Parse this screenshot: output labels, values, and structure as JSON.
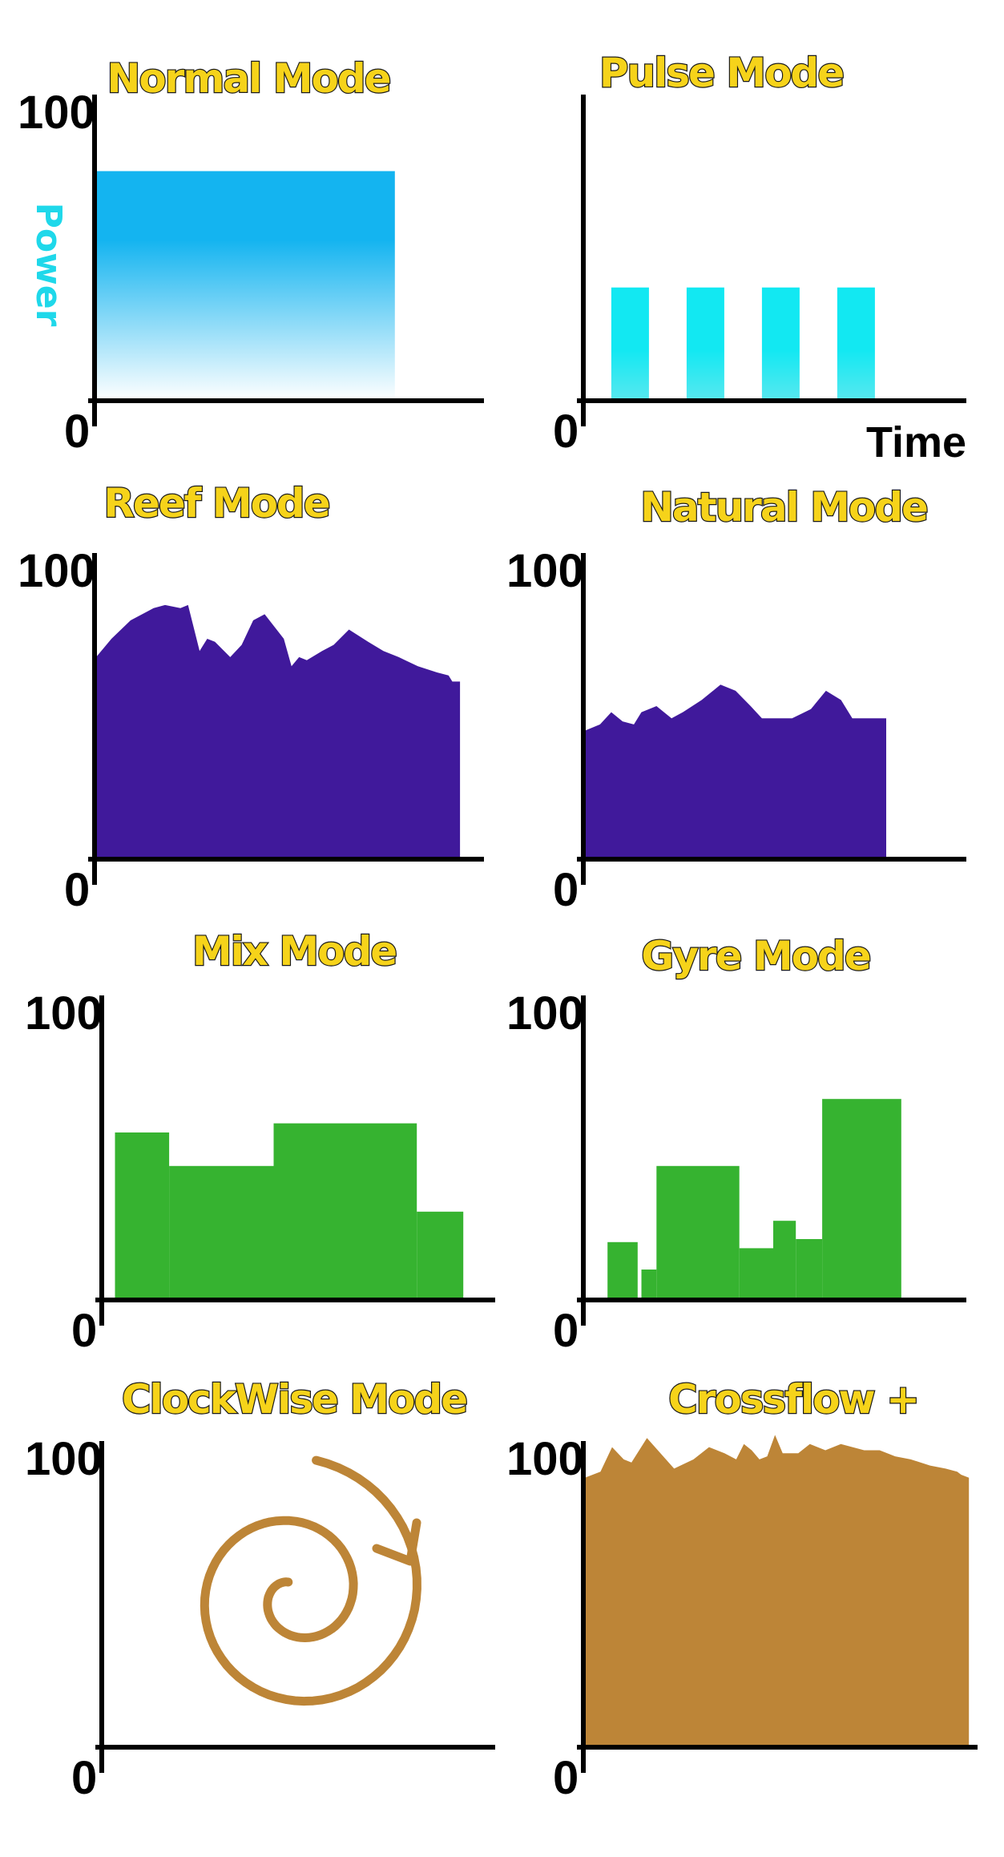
{
  "chart_data": [
    {
      "type": "area",
      "title": "Normal Mode",
      "ylabel": "Power",
      "xlabel": "",
      "ylim": [
        0,
        100
      ],
      "yticks": [
        "0",
        "100"
      ],
      "color": "#14b4f0",
      "gradient": true,
      "x": [
        0,
        0.78
      ],
      "values": [
        75,
        75
      ]
    },
    {
      "type": "bar",
      "title": "Pulse Mode",
      "xlabel": "Time",
      "ylim": [
        0,
        100
      ],
      "yticks": [
        "0"
      ],
      "color": "#12e8f2",
      "gradient": true,
      "bars": [
        {
          "x0": 0.07,
          "x1": 0.17,
          "value": 37
        },
        {
          "x0": 0.27,
          "x1": 0.37,
          "value": 37
        },
        {
          "x0": 0.47,
          "x1": 0.57,
          "value": 37
        },
        {
          "x0": 0.67,
          "x1": 0.77,
          "value": 37
        }
      ]
    },
    {
      "type": "area",
      "title": "Reef Mode",
      "ylim": [
        0,
        100
      ],
      "yticks": [
        "0",
        "100"
      ],
      "color": "#40199b",
      "x": [
        0,
        0.04,
        0.09,
        0.15,
        0.18,
        0.22,
        0.24,
        0.27,
        0.29,
        0.31,
        0.35,
        0.38,
        0.41,
        0.44,
        0.49,
        0.51,
        0.53,
        0.55,
        0.59,
        0.62,
        0.66,
        0.71,
        0.75,
        0.79,
        0.84,
        0.89,
        0.92,
        0.93,
        0.95
      ],
      "values": [
        66,
        72,
        78,
        82,
        83,
        82,
        83,
        68,
        72,
        71,
        66,
        70,
        78,
        80,
        72,
        63,
        66,
        65,
        68,
        70,
        75,
        71,
        68,
        66,
        63,
        61,
        60,
        58,
        58
      ]
    },
    {
      "type": "area",
      "title": "Natural Mode",
      "yticks": [
        "0",
        "100"
      ],
      "ylim": [
        0,
        100
      ],
      "color": "#40199b",
      "x": [
        0,
        0.04,
        0.07,
        0.1,
        0.13,
        0.15,
        0.19,
        0.23,
        0.26,
        0.31,
        0.36,
        0.4,
        0.44,
        0.47,
        0.51,
        0.55,
        0.6,
        0.64,
        0.68,
        0.71,
        0.74,
        0.77,
        0.8
      ],
      "values": [
        42,
        44,
        48,
        45,
        44,
        48,
        50,
        46,
        48,
        52,
        57,
        55,
        50,
        46,
        46,
        46,
        49,
        55,
        52,
        46,
        46,
        46,
        46
      ]
    },
    {
      "type": "bar",
      "title": "Mix Mode",
      "ylim": [
        0,
        100
      ],
      "yticks": [
        "0",
        "100"
      ],
      "color": "#36b330",
      "bars": [
        {
          "x0": 0.03,
          "x1": 0.17,
          "value": 55
        },
        {
          "x0": 0.17,
          "x1": 0.44,
          "value": 44
        },
        {
          "x0": 0.44,
          "x1": 0.81,
          "value": 58
        },
        {
          "x0": 0.81,
          "x1": 0.93,
          "value": 29
        }
      ]
    },
    {
      "type": "bar",
      "title": "Gyre Mode",
      "ylim": [
        0,
        100
      ],
      "yticks": [
        "0",
        "100"
      ],
      "color": "#36b330",
      "bars": [
        {
          "x0": 0.06,
          "x1": 0.14,
          "value": 19
        },
        {
          "x0": 0.15,
          "x1": 0.19,
          "value": 10
        },
        {
          "x0": 0.19,
          "x1": 0.41,
          "value": 44
        },
        {
          "x0": 0.41,
          "x1": 0.5,
          "value": 17
        },
        {
          "x0": 0.5,
          "x1": 0.56,
          "value": 26
        },
        {
          "x0": 0.56,
          "x1": 0.63,
          "value": 20
        },
        {
          "x0": 0.63,
          "x1": 0.84,
          "value": 66
        }
      ]
    },
    {
      "type": "spiral",
      "title": "ClockWise Mode",
      "ylim": [
        0,
        100
      ],
      "yticks": [
        "0",
        "100"
      ],
      "color": "#bd8537"
    },
    {
      "type": "area",
      "title": "Crossflow +",
      "ylim": [
        0,
        100
      ],
      "yticks": [
        "0",
        "100"
      ],
      "color": "#bd8537",
      "x": [
        0,
        0.04,
        0.07,
        0.1,
        0.12,
        0.16,
        0.23,
        0.28,
        0.32,
        0.36,
        0.39,
        0.41,
        0.43,
        0.45,
        0.47,
        0.49,
        0.51,
        0.55,
        0.58,
        0.62,
        0.66,
        0.72,
        0.76,
        0.8,
        0.84,
        0.89,
        0.93,
        0.96,
        0.97,
        0.99
      ],
      "values": [
        88,
        90,
        98,
        94,
        93,
        101,
        91,
        94,
        98,
        96,
        94,
        99,
        97,
        94,
        95,
        102,
        96,
        96,
        99,
        97,
        99,
        97,
        97,
        95,
        94,
        92,
        91,
        90,
        89,
        88
      ]
    }
  ]
}
